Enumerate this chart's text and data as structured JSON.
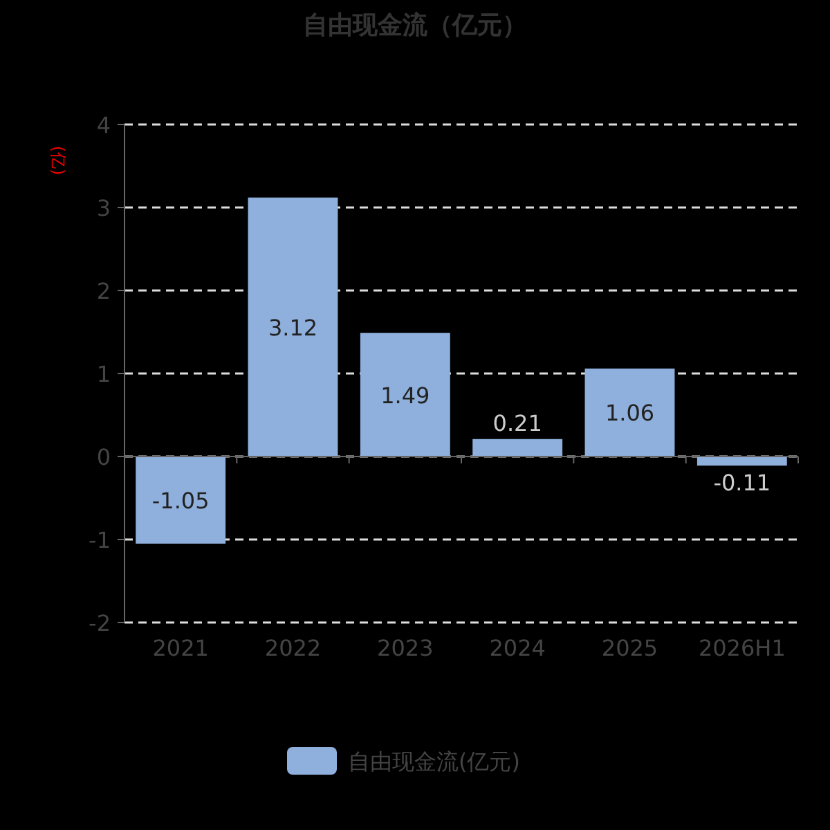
{
  "chart_data": {
    "type": "bar",
    "title": "自由现金流（亿元）",
    "ylabel": "(亿)",
    "categories": [
      "2021",
      "2022",
      "2023",
      "2024",
      "2025",
      "2026H1"
    ],
    "series": [
      {
        "name": "自由现金流(亿元)",
        "color": "#8fb0dd",
        "values": [
          -1.05,
          3.12,
          1.49,
          0.21,
          1.06,
          -0.11
        ]
      }
    ],
    "ylim": [
      -2,
      4
    ],
    "yticks": [
      -2,
      -1,
      0,
      1,
      2,
      3,
      4
    ],
    "grid": "y",
    "legend": "bottom",
    "data_labels": true
  }
}
